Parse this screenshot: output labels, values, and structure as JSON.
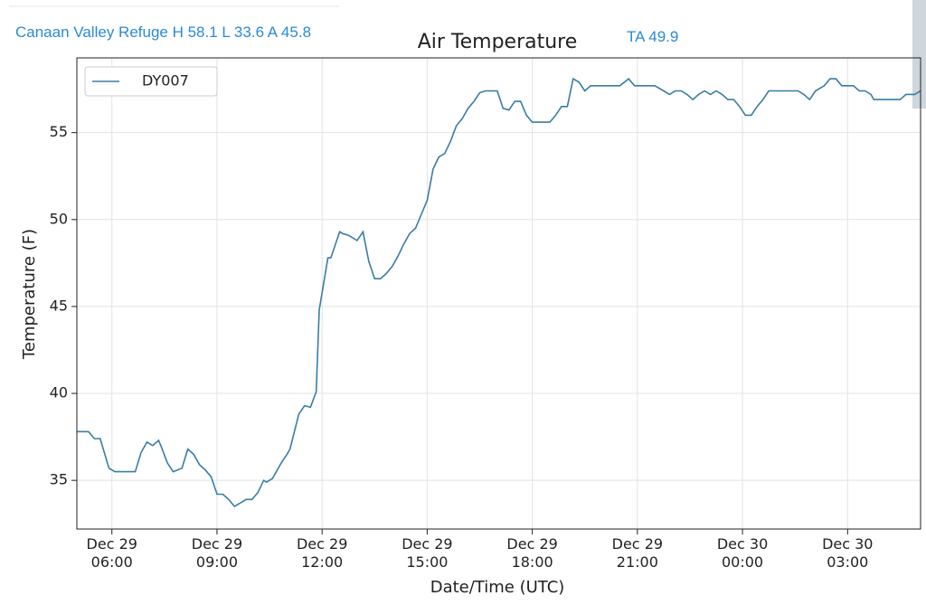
{
  "header": {
    "station": "Canaan Valley Refuge H 58.1 L 33.6 A 45.8",
    "average": "TA 49.9"
  },
  "chart_data": {
    "type": "line",
    "title": "Air Temperature",
    "x_label": "Date/Time (UTC)",
    "y_label": "Temperature (F)",
    "legend": "upper left",
    "grid": true,
    "xlim": [
      "Dec 29 05:00",
      "Dec 30 05:05"
    ],
    "xticks": [
      {
        "value": "Dec 29 06:00",
        "label": "Dec 29\n06:00"
      },
      {
        "value": "Dec 29 09:00",
        "label": "Dec 29\n09:00"
      },
      {
        "value": "Dec 29 12:00",
        "label": "Dec 29\n12:00"
      },
      {
        "value": "Dec 29 15:00",
        "label": "Dec 29\n15:00"
      },
      {
        "value": "Dec 29 18:00",
        "label": "Dec 29\n18:00"
      },
      {
        "value": "Dec 29 21:00",
        "label": "Dec 29\n21:00"
      },
      {
        "value": "Dec 30 00:00",
        "label": "Dec 30\n00:00"
      },
      {
        "value": "Dec 30 03:00",
        "label": "Dec 30\n03:00"
      }
    ],
    "ylim": [
      32.2,
      59.3
    ],
    "yticks": [
      35,
      40,
      45,
      50,
      55
    ],
    "x": [
      "Dec 29 05:00",
      "Dec 29 05:20",
      "Dec 29 05:30",
      "Dec 29 05:40",
      "Dec 29 05:55",
      "Dec 29 06:05",
      "Dec 29 06:40",
      "Dec 29 06:50",
      "Dec 29 07:00",
      "Dec 29 07:10",
      "Dec 29 07:20",
      "Dec 29 07:25",
      "Dec 29 07:35",
      "Dec 29 07:45",
      "Dec 29 08:00",
      "Dec 29 08:10",
      "Dec 29 08:20",
      "Dec 29 08:30",
      "Dec 29 08:40",
      "Dec 29 08:50",
      "Dec 29 09:00",
      "Dec 29 09:10",
      "Dec 29 09:20",
      "Dec 29 09:30",
      "Dec 29 09:40",
      "Dec 29 09:50",
      "Dec 29 10:00",
      "Dec 29 10:10",
      "Dec 29 10:20",
      "Dec 29 10:25",
      "Dec 29 10:35",
      "Dec 29 10:50",
      "Dec 29 11:00",
      "Dec 29 11:05",
      "Dec 29 11:20",
      "Dec 29 11:30",
      "Dec 29 11:40",
      "Dec 29 11:50",
      "Dec 29 11:55",
      "Dec 29 12:10",
      "Dec 29 12:15",
      "Dec 29 12:30",
      "Dec 29 12:35",
      "Dec 29 12:45",
      "Dec 29 13:00",
      "Dec 29 13:10",
      "Dec 29 13:20",
      "Dec 29 13:30",
      "Dec 29 13:40",
      "Dec 29 13:50",
      "Dec 29 14:00",
      "Dec 29 14:10",
      "Dec 29 14:20",
      "Dec 29 14:30",
      "Dec 29 14:40",
      "Dec 29 14:50",
      "Dec 29 15:00",
      "Dec 29 15:10",
      "Dec 29 15:20",
      "Dec 29 15:30",
      "Dec 29 15:40",
      "Dec 29 15:50",
      "Dec 29 16:00",
      "Dec 29 16:10",
      "Dec 29 16:20",
      "Dec 29 16:30",
      "Dec 29 16:40",
      "Dec 29 17:00",
      "Dec 29 17:10",
      "Dec 29 17:20",
      "Dec 29 17:30",
      "Dec 29 17:40",
      "Dec 29 17:50",
      "Dec 29 18:00",
      "Dec 29 18:30",
      "Dec 29 18:40",
      "Dec 29 18:50",
      "Dec 29 19:00",
      "Dec 29 19:10",
      "Dec 29 19:20",
      "Dec 29 19:30",
      "Dec 29 19:40",
      "Dec 29 20:30",
      "Dec 29 20:45",
      "Dec 29 20:55",
      "Dec 29 21:30",
      "Dec 29 21:45",
      "Dec 29 21:55",
      "Dec 29 22:05",
      "Dec 29 22:15",
      "Dec 29 22:25",
      "Dec 29 22:35",
      "Dec 29 22:45",
      "Dec 29 22:55",
      "Dec 29 23:05",
      "Dec 29 23:15",
      "Dec 29 23:25",
      "Dec 29 23:35",
      "Dec 29 23:45",
      "Dec 29 23:55",
      "Dec 30 00:05",
      "Dec 30 00:15",
      "Dec 30 00:25",
      "Dec 30 00:35",
      "Dec 30 00:45",
      "Dec 30 01:35",
      "Dec 30 01:45",
      "Dec 30 01:55",
      "Dec 30 02:05",
      "Dec 30 02:20",
      "Dec 30 02:30",
      "Dec 30 02:40",
      "Dec 30 02:50",
      "Dec 30 03:10",
      "Dec 30 03:20",
      "Dec 30 03:30",
      "Dec 30 03:40",
      "Dec 30 03:45",
      "Dec 30 04:30",
      "Dec 30 04:40",
      "Dec 30 04:55",
      "Dec 30 05:05"
    ],
    "series": [
      {
        "name": "DY007",
        "color": "#3a7ca5",
        "values": [
          37.8,
          37.8,
          37.4,
          37.4,
          35.7,
          35.5,
          35.5,
          36.6,
          37.2,
          37.0,
          37.3,
          36.9,
          36.0,
          35.5,
          35.7,
          36.8,
          36.5,
          35.9,
          35.6,
          35.2,
          34.2,
          34.2,
          33.9,
          33.5,
          33.7,
          33.9,
          33.9,
          34.3,
          35.0,
          34.9,
          35.1,
          36.0,
          36.5,
          36.8,
          38.8,
          39.3,
          39.2,
          40.1,
          44.8,
          47.8,
          47.8,
          49.3,
          49.2,
          49.1,
          48.8,
          49.3,
          47.6,
          46.6,
          46.6,
          46.9,
          47.3,
          47.9,
          48.6,
          49.2,
          49.5,
          50.3,
          51.1,
          52.9,
          53.6,
          53.8,
          54.5,
          55.4,
          55.8,
          56.4,
          56.8,
          57.3,
          57.4,
          57.4,
          56.4,
          56.3,
          56.8,
          56.8,
          56.0,
          55.6,
          55.6,
          56.0,
          56.5,
          56.5,
          58.1,
          57.9,
          57.4,
          57.7,
          57.7,
          58.1,
          57.7,
          57.7,
          57.4,
          57.2,
          57.4,
          57.4,
          57.2,
          56.9,
          57.2,
          57.4,
          57.2,
          57.4,
          57.2,
          56.9,
          56.9,
          56.5,
          56.0,
          56.0,
          56.5,
          56.9,
          57.4,
          57.4,
          57.2,
          56.9,
          57.4,
          57.7,
          58.1,
          58.1,
          57.7,
          57.7,
          57.4,
          57.4,
          57.2,
          56.9,
          56.9,
          57.2,
          57.2,
          57.4
        ]
      }
    ]
  }
}
